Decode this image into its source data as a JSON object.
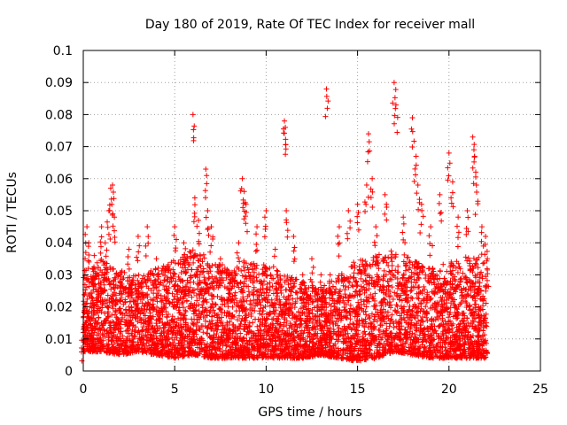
{
  "chart_data": {
    "type": "scatter",
    "title": "Day 180 of 2019, Rate Of TEC Index for receiver mall",
    "xlabel": "GPS time / hours",
    "ylabel": "ROTI / TECUs",
    "xlim": [
      0,
      25
    ],
    "ylim": [
      0,
      0.1
    ],
    "x_ticks": [
      "0",
      "5",
      "10",
      "15",
      "20",
      "25"
    ],
    "y_ticks": [
      "0",
      "0.01",
      "0.02",
      "0.03",
      "0.04",
      "0.05",
      "0.06",
      "0.07",
      "0.08",
      "0.09",
      "0.1"
    ],
    "grid": true,
    "marker": "+",
    "color": "#ff0000",
    "series": [
      {
        "points": [
          [
            0.0,
            0.012
          ],
          [
            0.1,
            0.035
          ],
          [
            0.2,
            0.045
          ],
          [
            0.3,
            0.04
          ],
          [
            0.5,
            0.028
          ],
          [
            0.6,
            0.036
          ],
          [
            1.0,
            0.045
          ],
          [
            1.2,
            0.04
          ],
          [
            1.4,
            0.05
          ],
          [
            1.5,
            0.057
          ],
          [
            1.6,
            0.058
          ],
          [
            1.7,
            0.048
          ],
          [
            2.0,
            0.03
          ],
          [
            2.5,
            0.038
          ],
          [
            3.0,
            0.042
          ],
          [
            3.5,
            0.045
          ],
          [
            4.0,
            0.035
          ],
          [
            4.5,
            0.032
          ],
          [
            5.0,
            0.045
          ],
          [
            5.5,
            0.04
          ],
          [
            6.0,
            0.08
          ],
          [
            6.1,
            0.054
          ],
          [
            6.3,
            0.047
          ],
          [
            6.7,
            0.063
          ],
          [
            6.8,
            0.05
          ],
          [
            7.0,
            0.045
          ],
          [
            7.5,
            0.035
          ],
          [
            8.0,
            0.03
          ],
          [
            8.5,
            0.04
          ],
          [
            8.7,
            0.06
          ],
          [
            8.8,
            0.056
          ],
          [
            8.9,
            0.052
          ],
          [
            9.5,
            0.045
          ],
          [
            10.0,
            0.05
          ],
          [
            10.5,
            0.038
          ],
          [
            11.0,
            0.078
          ],
          [
            11.05,
            0.076
          ],
          [
            11.1,
            0.05
          ],
          [
            11.5,
            0.042
          ],
          [
            12.0,
            0.03
          ],
          [
            12.5,
            0.035
          ],
          [
            13.0,
            0.03
          ],
          [
            13.3,
            0.088
          ],
          [
            13.5,
            0.03
          ],
          [
            14.0,
            0.045
          ],
          [
            14.5,
            0.05
          ],
          [
            15.0,
            0.052
          ],
          [
            15.5,
            0.058
          ],
          [
            15.6,
            0.074
          ],
          [
            15.8,
            0.06
          ],
          [
            16.0,
            0.045
          ],
          [
            16.5,
            0.055
          ],
          [
            17.0,
            0.09
          ],
          [
            17.1,
            0.083
          ],
          [
            17.5,
            0.048
          ],
          [
            18.0,
            0.079
          ],
          [
            18.2,
            0.067
          ],
          [
            18.3,
            0.058
          ],
          [
            18.5,
            0.052
          ],
          [
            19.0,
            0.045
          ],
          [
            19.5,
            0.055
          ],
          [
            20.0,
            0.068
          ],
          [
            20.2,
            0.059
          ],
          [
            20.5,
            0.048
          ],
          [
            21.0,
            0.05
          ],
          [
            21.3,
            0.073
          ],
          [
            21.4,
            0.067
          ],
          [
            21.5,
            0.058
          ],
          [
            21.8,
            0.045
          ],
          [
            22.0,
            0.042
          ],
          [
            22.1,
            0.035
          ]
        ],
        "envelope": {
          "x": [
            0,
            1,
            2,
            3,
            4,
            5,
            6,
            7,
            8,
            9,
            10,
            11,
            12,
            13,
            14,
            15,
            16,
            17,
            18,
            19,
            20,
            21,
            22.1
          ],
          "low": [
            0.006,
            0.006,
            0.005,
            0.006,
            0.005,
            0.004,
            0.005,
            0.004,
            0.004,
            0.004,
            0.004,
            0.004,
            0.004,
            0.005,
            0.004,
            0.003,
            0.004,
            0.006,
            0.005,
            0.004,
            0.004,
            0.004,
            0.004
          ],
          "high": [
            0.03,
            0.035,
            0.032,
            0.03,
            0.032,
            0.035,
            0.038,
            0.035,
            0.032,
            0.035,
            0.033,
            0.03,
            0.028,
            0.026,
            0.03,
            0.035,
            0.036,
            0.038,
            0.035,
            0.032,
            0.034,
            0.036,
            0.035
          ]
        }
      }
    ]
  }
}
